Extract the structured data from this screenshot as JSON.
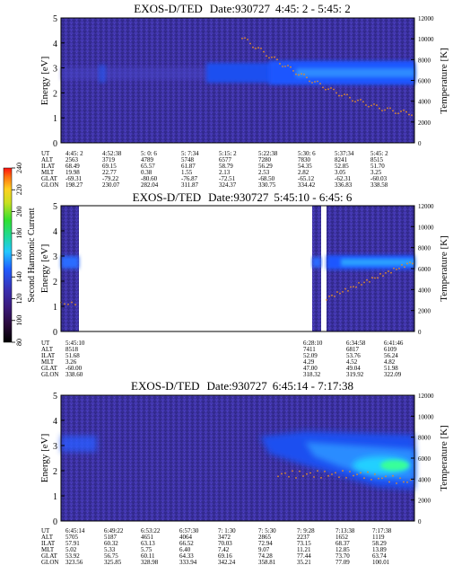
{
  "chart_data": [
    {
      "type": "heatmap",
      "title": "EXOS-D/TED",
      "date_label": "Date:930727",
      "time_range": "4:45: 2 - 5:45: 2",
      "ylabel": "Energy [eV]",
      "y2label": "Temperature [K]",
      "ylim": [
        0,
        5
      ],
      "y2lim": [
        0,
        12000
      ],
      "yticks": [
        "0",
        "1",
        "2",
        "3",
        "4",
        "5"
      ],
      "y2ticks": [
        "0",
        "2000",
        "4000",
        "6000",
        "8000",
        "10000",
        "12000"
      ],
      "orbit_table": {
        "row_labels": [
          "UT",
          "ALT",
          "ILAT",
          "MLT",
          "GLAT",
          "GLON"
        ],
        "columns": [
          [
            "4:45: 2",
            "2563",
            "68.49",
            "19.98",
            "-69.31",
            "198.27"
          ],
          [
            "4:52:38",
            "3719",
            "69.15",
            "22.77",
            "-79.22",
            "230.07"
          ],
          [
            "5: 0: 6",
            "4789",
            "65.57",
            "0.38",
            "-80.60",
            "282.04"
          ],
          [
            "5: 7:34",
            "5748",
            "61.87",
            "1.55",
            "-76.87",
            "311.87"
          ],
          [
            "5:15: 2",
            "6577",
            "58.79",
            "2.13",
            "-72.51",
            "324.37"
          ],
          [
            "5:22:38",
            "7280",
            "56.29",
            "2.53",
            "-68.50",
            "330.75"
          ],
          [
            "5:30: 6",
            "7830",
            "54.35",
            "2.82",
            "-65.12",
            "334.42"
          ],
          [
            "5:37:34",
            "8241",
            "52.85",
            "3.05",
            "-62.31",
            "336.83"
          ],
          [
            "5:45: 2",
            "8515",
            "51.70",
            "3.25",
            "-60.03",
            "338.58"
          ]
        ]
      }
    },
    {
      "type": "heatmap",
      "title": "EXOS-D/TED",
      "date_label": "Date:930727",
      "time_range": "5:45:10 - 6:45: 6",
      "ylabel": "Energy [eV]",
      "y2label": "Temperature [K]",
      "ylim": [
        0,
        5
      ],
      "y2lim": [
        0,
        12000
      ],
      "yticks": [
        "0",
        "1",
        "2",
        "3",
        "4",
        "5"
      ],
      "y2ticks": [
        "0",
        "2000",
        "4000",
        "6000",
        "8000",
        "10000",
        "12000"
      ],
      "colorbar": {
        "label": "Second Harmonic Current",
        "ticks": [
          "80",
          "100",
          "120",
          "140",
          "160",
          "180",
          "200",
          "220",
          "240"
        ]
      },
      "orbit_table": {
        "row_labels": [
          "UT",
          "ALT",
          "ILAT",
          "MLT",
          "GLAT",
          "GLON"
        ],
        "columns": [
          [
            "5:45:10",
            "8518",
            "51.68",
            "3.26",
            "-60.00",
            "338.60"
          ],
          [
            "6:28:10",
            "7411",
            "52.09",
            "4.29",
            "47.00",
            "318.32"
          ],
          [
            "6:34:58",
            "6817",
            "53.76",
            "4.52",
            "49.04",
            "319.92"
          ],
          [
            "6:41:46",
            "6109",
            "56.24",
            "4.82",
            "51.98",
            "322.09"
          ]
        ]
      }
    },
    {
      "type": "heatmap",
      "title": "EXOS-D/TED",
      "date_label": "Date:930727",
      "time_range": "6:45:14 - 7:17:38",
      "ylabel": "Energy [eV]",
      "y2label": "Temperature [K]",
      "ylim": [
        0,
        5
      ],
      "y2lim": [
        0,
        12000
      ],
      "yticks": [
        "0",
        "1",
        "2",
        "3",
        "4",
        "5"
      ],
      "y2ticks": [
        "0",
        "2000",
        "4000",
        "6000",
        "8000",
        "10000",
        "12000"
      ],
      "orbit_table": {
        "row_labels": [
          "UT",
          "ALT",
          "ILAT",
          "MLT",
          "GLAT",
          "GLON"
        ],
        "columns": [
          [
            "6:45:14",
            "5705",
            "57.91",
            "5.02",
            "53.92",
            "323.56"
          ],
          [
            "6:49:22",
            "5187",
            "60.32",
            "5.33",
            "56.75",
            "325.85"
          ],
          [
            "6:53:22",
            "4651",
            "63.13",
            "5.75",
            "60.11",
            "328.98"
          ],
          [
            "6:57:30",
            "4064",
            "66.52",
            "6.40",
            "64.33",
            "333.94"
          ],
          [
            "7: 1:30",
            "3472",
            "70.03",
            "7.42",
            "69.16",
            "342.24"
          ],
          [
            "7: 5:30",
            "2865",
            "72.94",
            "9.07",
            "74.28",
            "358.81"
          ],
          [
            "7: 9:28",
            "2237",
            "73.15",
            "11.21",
            "77.44",
            "35.21"
          ],
          [
            "7:13:38",
            "1652",
            "68.37",
            "12.85",
            "73.70",
            "77.09"
          ],
          [
            "7:17:38",
            "1119",
            "58.29",
            "13.89",
            "63.74",
            "100.01"
          ]
        ]
      }
    }
  ],
  "colors": {
    "background_dark": "#3a2f9c",
    "background_mid": "#4a40b8",
    "band": "#1d5bff",
    "band_core": "#2f8bff",
    "hot": "#22d8ff",
    "peak": "#38ff7a",
    "trace": "#e08a2a"
  }
}
